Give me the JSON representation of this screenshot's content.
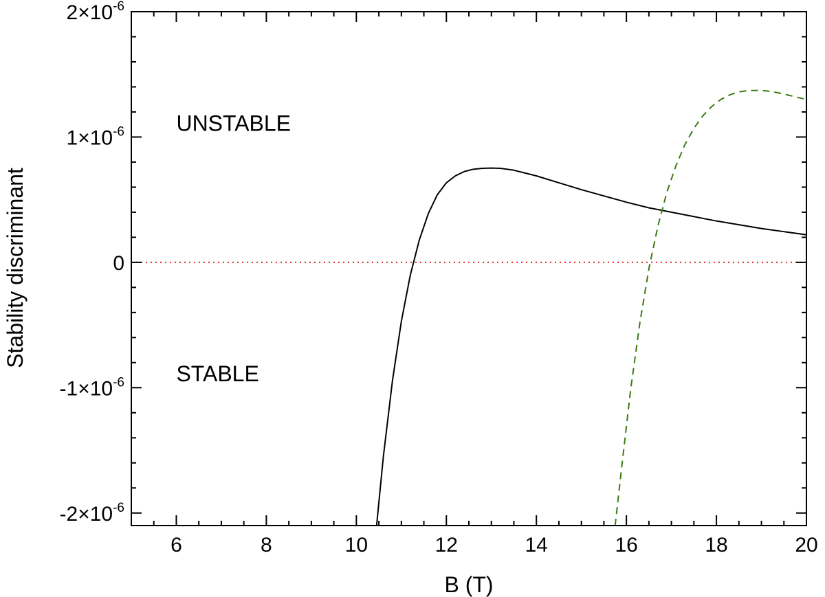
{
  "chart_data": {
    "type": "line",
    "title": "",
    "xlabel": "B (T)",
    "ylabel": "Stability discriminant",
    "xlim": [
      5,
      20
    ],
    "ylim": [
      -2.1e-06,
      2e-06
    ],
    "grid": false,
    "x_ticks": [
      6,
      8,
      10,
      12,
      14,
      16,
      18,
      20
    ],
    "x_tick_labels": [
      "6",
      "8",
      "10",
      "12",
      "14",
      "16",
      "18",
      "20"
    ],
    "y_ticks": [
      {
        "value": 2e-06,
        "mantissa": "2×10",
        "exponent": "-6"
      },
      {
        "value": 1e-06,
        "mantissa": "1×10",
        "exponent": "-6"
      },
      {
        "value": 0,
        "mantissa": "0",
        "exponent": ""
      },
      {
        "value": -1e-06,
        "mantissa": "-1×10",
        "exponent": "-6"
      },
      {
        "value": -2e-06,
        "mantissa": "-2×10",
        "exponent": "-6"
      }
    ],
    "annotations": [
      {
        "text": "UNSTABLE",
        "x": 6,
        "y": 1.05e-06
      },
      {
        "text": "STABLE",
        "x": 6,
        "y": -9.5e-07
      }
    ],
    "series": [
      {
        "style": "solid",
        "color": "#000000",
        "x": [
          10.45,
          10.6,
          10.8,
          11.0,
          11.2,
          11.4,
          11.6,
          11.8,
          12.0,
          12.2,
          12.4,
          12.6,
          12.8,
          13.0,
          13.2,
          13.5,
          14.0,
          14.5,
          15.0,
          15.5,
          16.0,
          16.5,
          17.0,
          17.5,
          18.0,
          18.5,
          19.0,
          19.5,
          20.0
        ],
        "y": [
          -2.1e-06,
          -1.55e-06,
          -9.5e-07,
          -4.7e-07,
          -1e-07,
          1.8e-07,
          3.9e-07,
          5.4e-07,
          6.35e-07,
          6.9e-07,
          7.25e-07,
          7.43e-07,
          7.5e-07,
          7.52e-07,
          7.5e-07,
          7.35e-07,
          6.9e-07,
          6.35e-07,
          5.8e-07,
          5.3e-07,
          4.8e-07,
          4.35e-07,
          4e-07,
          3.65e-07,
          3.3e-07,
          3e-07,
          2.7e-07,
          2.45e-07,
          2.2e-07
        ]
      },
      {
        "style": "dashed",
        "color": "#3a7a12",
        "x": [
          15.75,
          15.9,
          16.1,
          16.3,
          16.5,
          16.7,
          16.9,
          17.1,
          17.3,
          17.5,
          17.7,
          17.9,
          18.1,
          18.3,
          18.5,
          18.7,
          18.9,
          19.1,
          19.3,
          19.5,
          19.7,
          20.0
        ],
        "y": [
          -2.1e-06,
          -1.62e-06,
          -1e-06,
          -4.8e-07,
          -5e-08,
          2.9e-07,
          5.6e-07,
          7.7e-07,
          9.4e-07,
          1.07e-06,
          1.17e-06,
          1.245e-06,
          1.3e-06,
          1.337e-06,
          1.36e-06,
          1.37e-06,
          1.372e-06,
          1.368e-06,
          1.358e-06,
          1.343e-06,
          1.325e-06,
          1.3e-06
        ]
      },
      {
        "style": "dotted",
        "color": "#e02020",
        "x": [
          5,
          20
        ],
        "y": [
          0,
          0
        ]
      }
    ]
  }
}
